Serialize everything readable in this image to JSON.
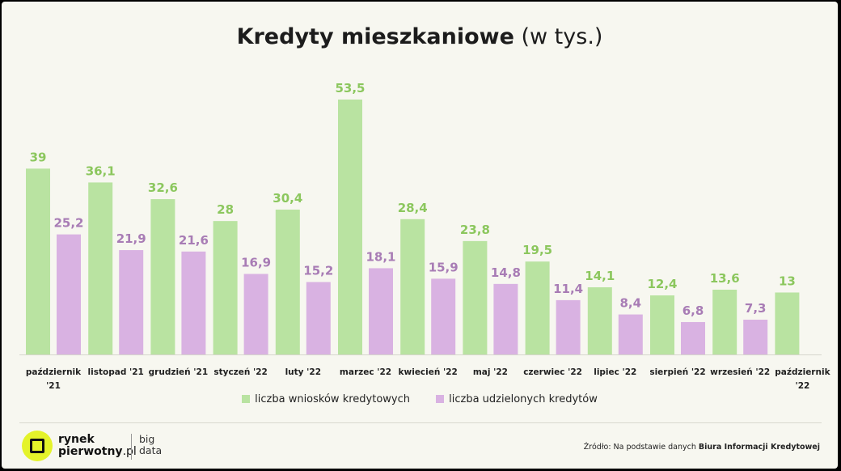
{
  "title": {
    "bold": "Kredyty mieszkaniowe",
    "light": "(w tys.)"
  },
  "colors": {
    "applications": "#b9e3a1",
    "applications_label": "#8cc75e",
    "granted": "#d9b2e2",
    "granted_label": "#a87cb5",
    "background": "#f7f7f0"
  },
  "legend": {
    "applications": "liczba wniosków kredytowych",
    "granted": "liczba udzielonych kredytów"
  },
  "logo": {
    "line1": "rynek",
    "line2a": "pierwotny",
    "line2b": ".pl",
    "big1": "big",
    "big2": "data",
    "icon": "square-in-circle-icon"
  },
  "source": {
    "prefix": "Źródło: Na podstawie danych ",
    "bold": "Biura Informacji Kredytowej"
  },
  "chart_data": {
    "type": "bar",
    "categories": [
      [
        "październik",
        "'21"
      ],
      [
        "listopad '21"
      ],
      [
        "grudzień '21"
      ],
      [
        "styczeń '22"
      ],
      [
        "luty '22"
      ],
      [
        "marzec '22"
      ],
      [
        "kwiecień '22"
      ],
      [
        "maj '22"
      ],
      [
        "czerwiec '22"
      ],
      [
        "lipiec '22"
      ],
      [
        "sierpień '22"
      ],
      [
        "wrzesień '22"
      ],
      [
        "październik",
        "'22"
      ]
    ],
    "series": [
      {
        "name": "liczba wniosków kredytowych",
        "values": [
          39,
          36.1,
          32.6,
          28,
          30.4,
          53.5,
          28.4,
          23.8,
          19.5,
          14.1,
          12.4,
          13.6,
          13
        ],
        "labels": [
          "39",
          "36,1",
          "32,6",
          "28",
          "30,4",
          "53,5",
          "28,4",
          "23,8",
          "19,5",
          "14,1",
          "12,4",
          "13,6",
          "13"
        ]
      },
      {
        "name": "liczba udzielonych kredytów",
        "values": [
          25.2,
          21.9,
          21.6,
          16.9,
          15.2,
          18.1,
          15.9,
          14.8,
          11.4,
          8.4,
          6.8,
          7.3,
          null
        ],
        "labels": [
          "25,2",
          "21,9",
          "21,6",
          "16,9",
          "15,2",
          "18,1",
          "15,9",
          "14,8",
          "11,4",
          "8,4",
          "6,8",
          "7,3",
          ""
        ]
      }
    ],
    "ylim": [
      0,
      53.5
    ],
    "grid": false,
    "legend_position": "bottom"
  }
}
